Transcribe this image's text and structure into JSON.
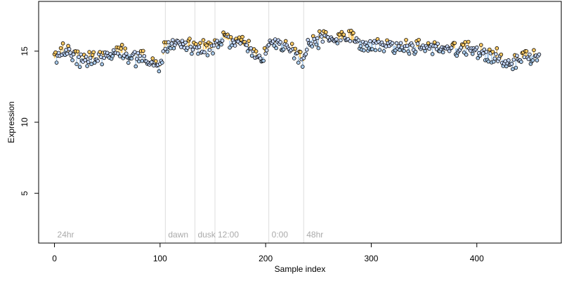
{
  "chart_data": {
    "type": "scatter",
    "title": "",
    "xlabel": "Sample index",
    "ylabel": "Expression",
    "xlim": [
      -15,
      480
    ],
    "ylim": [
      1.5,
      18.5
    ],
    "xticks": [
      0,
      100,
      200,
      300,
      400
    ],
    "yticks": [
      5,
      10,
      15
    ],
    "grid": false,
    "sections": [
      {
        "label": "24hr",
        "x": 0
      },
      {
        "label": "dawn",
        "x": 105
      },
      {
        "label": "dusk",
        "x": 133
      },
      {
        "label": "12:00",
        "x": 152
      },
      {
        "label": "0:00",
        "x": 203
      },
      {
        "label": "48hr",
        "x": 236
      }
    ],
    "n_points": 460,
    "series_colors": {
      "normal": "#c8dbff",
      "high": "#ffcc66",
      "low": "#aaccee",
      "outline": "#000000"
    },
    "profile_anchors": {
      "x": [
        0,
        10,
        20,
        30,
        45,
        55,
        70,
        85,
        92,
        100,
        105,
        110,
        120,
        133,
        140,
        150,
        158,
        170,
        185,
        192,
        198,
        205,
        210,
        220,
        230,
        236,
        240,
        250,
        270,
        290,
        320,
        340,
        360,
        380,
        400,
        415,
        430,
        440,
        450,
        460
      ],
      "y": [
        14.5,
        15.1,
        14.7,
        14.4,
        14.6,
        15.0,
        14.8,
        14.6,
        14.1,
        13.9,
        15.3,
        15.6,
        15.5,
        15.2,
        15.1,
        15.2,
        16.0,
        15.6,
        15.3,
        14.5,
        14.6,
        15.7,
        15.6,
        15.4,
        14.7,
        14.3,
        15.7,
        15.9,
        15.9,
        15.7,
        15.4,
        15.3,
        15.3,
        15.2,
        15.1,
        14.7,
        14.2,
        14.5,
        14.6,
        14.8
      ]
    }
  }
}
